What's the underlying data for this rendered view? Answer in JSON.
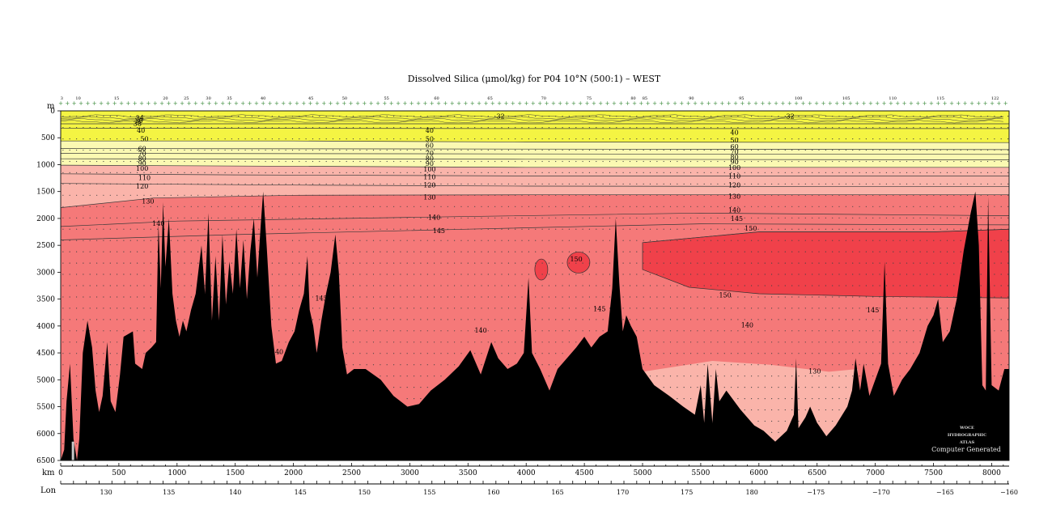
{
  "chart_data": {
    "type": "contour section",
    "title": "Dissolved Silica (μmol/kg) for P04 10°N (500:1) – WEST",
    "y_unit": "m",
    "x_unit": "km",
    "lon_label": "Lon",
    "ylim": [
      6500,
      0
    ],
    "xlim": [
      0,
      8150
    ],
    "depth_ticks": [
      0,
      500,
      1000,
      1500,
      2000,
      2500,
      3000,
      3500,
      4000,
      4500,
      5000,
      5500,
      6000,
      6500
    ],
    "distance_ticks": [
      0,
      500,
      1000,
      1500,
      2000,
      2500,
      3000,
      3500,
      4000,
      4500,
      5000,
      5500,
      6000,
      6500,
      7000,
      7500,
      8000
    ],
    "lon_ticks": [
      {
        "km": 390,
        "label": "130"
      },
      {
        "km": 930,
        "label": "135"
      },
      {
        "km": 1500,
        "label": "140"
      },
      {
        "km": 2060,
        "label": "145"
      },
      {
        "km": 2610,
        "label": "150"
      },
      {
        "km": 3170,
        "label": "155"
      },
      {
        "km": 3720,
        "label": "160"
      },
      {
        "km": 4270,
        "label": "165"
      },
      {
        "km": 4830,
        "label": "170"
      },
      {
        "km": 5380,
        "label": "175"
      },
      {
        "km": 5940,
        "label": "180"
      },
      {
        "km": 6490,
        "label": "−175"
      },
      {
        "km": 7050,
        "label": "−170"
      },
      {
        "km": 7600,
        "label": "−165"
      },
      {
        "km": 8150,
        "label": "−160"
      }
    ],
    "stations": [
      {
        "km": 10,
        "label": "3"
      },
      {
        "km": 150,
        "label": "10"
      },
      {
        "km": 480,
        "label": "15"
      },
      {
        "km": 900,
        "label": "20"
      },
      {
        "km": 1080,
        "label": "25"
      },
      {
        "km": 1270,
        "label": "30"
      },
      {
        "km": 1450,
        "label": "35"
      },
      {
        "km": 1740,
        "label": "40"
      },
      {
        "km": 2150,
        "label": "45"
      },
      {
        "km": 2440,
        "label": "50"
      },
      {
        "km": 2800,
        "label": "55"
      },
      {
        "km": 3230,
        "label": "60"
      },
      {
        "km": 3690,
        "label": "65"
      },
      {
        "km": 4150,
        "label": "70"
      },
      {
        "km": 4540,
        "label": "75"
      },
      {
        "km": 4920,
        "label": "80"
      },
      {
        "km": 5020,
        "label": "85"
      },
      {
        "km": 5420,
        "label": "90"
      },
      {
        "km": 5850,
        "label": "95"
      },
      {
        "km": 6340,
        "label": "100"
      },
      {
        "km": 6750,
        "label": "105"
      },
      {
        "km": 7150,
        "label": "110"
      },
      {
        "km": 7560,
        "label": "115"
      },
      {
        "km": 8030,
        "label": "122"
      }
    ],
    "contour_levels": [
      32,
      34,
      36,
      38,
      40,
      50,
      60,
      70,
      80,
      90,
      100,
      110,
      120,
      130,
      140,
      145,
      150
    ],
    "fill_bands": [
      {
        "range": "<60",
        "color": "#f4f443"
      },
      {
        "range": "60-100",
        "color": "#fbf9b2"
      },
      {
        "range": "100-130",
        "color": "#fab4aa"
      },
      {
        "range": "130-150",
        "color": "#f57979"
      },
      {
        "range": ">150",
        "color": "#f0414a"
      }
    ],
    "contours": [
      {
        "label": "40",
        "depths": [
          [
            0,
            240
          ],
          [
            4000,
            240
          ],
          [
            8150,
            240
          ]
        ]
      },
      {
        "label": "50",
        "depths": [
          [
            0,
            320
          ],
          [
            4000,
            330
          ],
          [
            8150,
            330
          ]
        ]
      },
      {
        "label": "60",
        "depths": [
          [
            0,
            560
          ],
          [
            2000,
            560
          ],
          [
            4000,
            580
          ],
          [
            8150,
            590
          ]
        ]
      },
      {
        "label": "70",
        "depths": [
          [
            0,
            700
          ],
          [
            4000,
            710
          ],
          [
            8150,
            720
          ]
        ]
      },
      {
        "label": "80",
        "depths": [
          [
            0,
            790
          ],
          [
            4000,
            800
          ],
          [
            8150,
            810
          ]
        ]
      },
      {
        "label": "90",
        "depths": [
          [
            0,
            890
          ],
          [
            4000,
            900
          ],
          [
            8150,
            910
          ]
        ]
      },
      {
        "label": "100",
        "depths": [
          [
            0,
            1010
          ],
          [
            4000,
            1050
          ],
          [
            8150,
            1050
          ]
        ]
      },
      {
        "label": "110",
        "depths": [
          [
            0,
            1170
          ],
          [
            1500,
            1190
          ],
          [
            4000,
            1210
          ],
          [
            8150,
            1210
          ]
        ]
      },
      {
        "label": "120",
        "depths": [
          [
            0,
            1350
          ],
          [
            2000,
            1380
          ],
          [
            4000,
            1400
          ],
          [
            8150,
            1410
          ]
        ]
      },
      {
        "label": "130",
        "depths": [
          [
            0,
            1800
          ],
          [
            800,
            1620
          ],
          [
            2000,
            1570
          ],
          [
            4000,
            1560
          ],
          [
            8150,
            1560
          ]
        ]
      },
      {
        "label": "140",
        "depths": [
          [
            0,
            2150
          ],
          [
            1000,
            2050
          ],
          [
            3000,
            1980
          ],
          [
            5500,
            1900
          ],
          [
            8150,
            1950
          ]
        ]
      },
      {
        "label": "145",
        "depths": [
          [
            0,
            2400
          ],
          [
            1500,
            2300
          ],
          [
            3500,
            2200
          ],
          [
            5500,
            2100
          ],
          [
            8150,
            2120
          ]
        ]
      },
      {
        "label": "150",
        "depths": [
          [
            5000,
            2450
          ],
          [
            6000,
            2250
          ],
          [
            7500,
            2250
          ],
          [
            8150,
            2200
          ]
        ]
      }
    ],
    "labels": [
      {
        "text": "34",
        "km": 680,
        "depth": 130
      },
      {
        "text": "36",
        "km": 670,
        "depth": 180
      },
      {
        "text": "38",
        "km": 660,
        "depth": 230
      },
      {
        "text": "40",
        "km": 690,
        "depth": 360
      },
      {
        "text": "50",
        "km": 720,
        "depth": 520
      },
      {
        "text": "60",
        "km": 700,
        "depth": 700
      },
      {
        "text": "70",
        "km": 700,
        "depth": 790
      },
      {
        "text": "80",
        "km": 700,
        "depth": 880
      },
      {
        "text": "90",
        "km": 700,
        "depth": 970
      },
      {
        "text": "100",
        "km": 700,
        "depth": 1070
      },
      {
        "text": "110",
        "km": 720,
        "depth": 1240
      },
      {
        "text": "120",
        "km": 700,
        "depth": 1400
      },
      {
        "text": "130",
        "km": 750,
        "depth": 1680
      },
      {
        "text": "140",
        "km": 840,
        "depth": 2090
      },
      {
        "text": "40",
        "km": 3170,
        "depth": 360
      },
      {
        "text": "50",
        "km": 3170,
        "depth": 520
      },
      {
        "text": "60",
        "km": 3170,
        "depth": 640
      },
      {
        "text": "70",
        "km": 3170,
        "depth": 780
      },
      {
        "text": "80",
        "km": 3170,
        "depth": 880
      },
      {
        "text": "90",
        "km": 3170,
        "depth": 980
      },
      {
        "text": "100",
        "km": 3170,
        "depth": 1080
      },
      {
        "text": "110",
        "km": 3170,
        "depth": 1230
      },
      {
        "text": "120",
        "km": 3170,
        "depth": 1380
      },
      {
        "text": "130",
        "km": 3170,
        "depth": 1600
      },
      {
        "text": "140",
        "km": 3210,
        "depth": 1980
      },
      {
        "text": "145",
        "km": 3250,
        "depth": 2230
      },
      {
        "text": "32",
        "km": 3780,
        "depth": 100
      },
      {
        "text": "150",
        "km": 4430,
        "depth": 2750
      },
      {
        "text": "145",
        "km": 4630,
        "depth": 3680
      },
      {
        "text": "140",
        "km": 3610,
        "depth": 4080
      },
      {
        "text": "145",
        "km": 2240,
        "depth": 3480
      },
      {
        "text": "140",
        "km": 1860,
        "depth": 4480
      },
      {
        "text": "40",
        "km": 5790,
        "depth": 400
      },
      {
        "text": "50",
        "km": 5790,
        "depth": 540
      },
      {
        "text": "60",
        "km": 5790,
        "depth": 660
      },
      {
        "text": "70",
        "km": 5790,
        "depth": 760
      },
      {
        "text": "80",
        "km": 5790,
        "depth": 860
      },
      {
        "text": "90",
        "km": 5790,
        "depth": 950
      },
      {
        "text": "100",
        "km": 5790,
        "depth": 1050
      },
      {
        "text": "110",
        "km": 5790,
        "depth": 1210
      },
      {
        "text": "120",
        "km": 5790,
        "depth": 1380
      },
      {
        "text": "130",
        "km": 5790,
        "depth": 1590
      },
      {
        "text": "140",
        "km": 5790,
        "depth": 1840
      },
      {
        "text": "145",
        "km": 5810,
        "depth": 2000
      },
      {
        "text": "150",
        "km": 5930,
        "depth": 2180
      },
      {
        "text": "150",
        "km": 5710,
        "depth": 3420
      },
      {
        "text": "140",
        "km": 5900,
        "depth": 3980
      },
      {
        "text": "130",
        "km": 6480,
        "depth": 4840
      },
      {
        "text": "145",
        "km": 6980,
        "depth": 3700
      },
      {
        "text": "32",
        "km": 6270,
        "depth": 100
      }
    ],
    "bathymetry": [
      [
        0,
        6500
      ],
      [
        30,
        6300
      ],
      [
        50,
        5400
      ],
      [
        80,
        4700
      ],
      [
        110,
        6100
      ],
      [
        140,
        6500
      ],
      [
        160,
        6100
      ],
      [
        190,
        4500
      ],
      [
        230,
        3900
      ],
      [
        270,
        4400
      ],
      [
        300,
        5200
      ],
      [
        330,
        5600
      ],
      [
        360,
        5300
      ],
      [
        400,
        4300
      ],
      [
        430,
        5400
      ],
      [
        470,
        5600
      ],
      [
        510,
        4900
      ],
      [
        540,
        4200
      ],
      [
        620,
        4100
      ],
      [
        640,
        4700
      ],
      [
        700,
        4800
      ],
      [
        730,
        4500
      ],
      [
        780,
        4400
      ],
      [
        820,
        4300
      ],
      [
        840,
        2100
      ],
      [
        860,
        3300
      ],
      [
        880,
        1700
      ],
      [
        900,
        2900
      ],
      [
        930,
        2000
      ],
      [
        960,
        3400
      ],
      [
        990,
        3900
      ],
      [
        1020,
        4200
      ],
      [
        1050,
        3900
      ],
      [
        1080,
        4100
      ],
      [
        1120,
        3700
      ],
      [
        1160,
        3400
      ],
      [
        1210,
        2500
      ],
      [
        1240,
        3400
      ],
      [
        1270,
        1900
      ],
      [
        1300,
        3900
      ],
      [
        1330,
        2700
      ],
      [
        1360,
        3900
      ],
      [
        1390,
        2300
      ],
      [
        1420,
        3600
      ],
      [
        1450,
        2800
      ],
      [
        1480,
        3400
      ],
      [
        1510,
        2200
      ],
      [
        1540,
        3300
      ],
      [
        1570,
        2400
      ],
      [
        1600,
        3500
      ],
      [
        1630,
        2600
      ],
      [
        1660,
        2000
      ],
      [
        1690,
        3100
      ],
      [
        1720,
        2100
      ],
      [
        1740,
        1500
      ],
      [
        1770,
        2500
      ],
      [
        1810,
        4000
      ],
      [
        1850,
        4700
      ],
      [
        1900,
        4650
      ],
      [
        1960,
        4300
      ],
      [
        2010,
        4100
      ],
      [
        2050,
        3700
      ],
      [
        2090,
        3400
      ],
      [
        2120,
        2700
      ],
      [
        2140,
        3700
      ],
      [
        2170,
        4000
      ],
      [
        2200,
        4500
      ],
      [
        2240,
        3900
      ],
      [
        2280,
        3400
      ],
      [
        2320,
        3000
      ],
      [
        2360,
        2300
      ],
      [
        2390,
        3000
      ],
      [
        2420,
        4400
      ],
      [
        2460,
        4900
      ],
      [
        2520,
        4800
      ],
      [
        2620,
        4800
      ],
      [
        2750,
        5000
      ],
      [
        2860,
        5300
      ],
      [
        2980,
        5500
      ],
      [
        3080,
        5450
      ],
      [
        3180,
        5200
      ],
      [
        3300,
        5000
      ],
      [
        3420,
        4750
      ],
      [
        3520,
        4450
      ],
      [
        3610,
        4900
      ],
      [
        3700,
        4300
      ],
      [
        3760,
        4600
      ],
      [
        3840,
        4800
      ],
      [
        3920,
        4700
      ],
      [
        3980,
        4500
      ],
      [
        4020,
        3100
      ],
      [
        4050,
        4500
      ],
      [
        4120,
        4800
      ],
      [
        4200,
        5200
      ],
      [
        4270,
        4800
      ],
      [
        4350,
        4600
      ],
      [
        4430,
        4400
      ],
      [
        4500,
        4200
      ],
      [
        4560,
        4400
      ],
      [
        4630,
        4200
      ],
      [
        4700,
        4100
      ],
      [
        4740,
        3300
      ],
      [
        4770,
        2000
      ],
      [
        4800,
        3200
      ],
      [
        4830,
        4100
      ],
      [
        4860,
        3800
      ],
      [
        4900,
        4000
      ],
      [
        4950,
        4200
      ],
      [
        5000,
        4800
      ],
      [
        5100,
        5100
      ],
      [
        5230,
        5300
      ],
      [
        5350,
        5500
      ],
      [
        5450,
        5650
      ],
      [
        5500,
        5100
      ],
      [
        5530,
        5800
      ],
      [
        5560,
        4700
      ],
      [
        5600,
        5800
      ],
      [
        5630,
        4800
      ],
      [
        5660,
        5400
      ],
      [
        5720,
        5200
      ],
      [
        5840,
        5550
      ],
      [
        5960,
        5850
      ],
      [
        6040,
        5950
      ],
      [
        6140,
        6150
      ],
      [
        6240,
        5950
      ],
      [
        6300,
        5650
      ],
      [
        6320,
        4600
      ],
      [
        6340,
        5900
      ],
      [
        6400,
        5700
      ],
      [
        6440,
        5500
      ],
      [
        6500,
        5800
      ],
      [
        6580,
        6050
      ],
      [
        6660,
        5850
      ],
      [
        6760,
        5500
      ],
      [
        6800,
        5200
      ],
      [
        6830,
        4600
      ],
      [
        6870,
        5200
      ],
      [
        6900,
        4700
      ],
      [
        6950,
        5300
      ],
      [
        7000,
        5000
      ],
      [
        7050,
        4700
      ],
      [
        7080,
        2800
      ],
      [
        7110,
        4700
      ],
      [
        7160,
        5300
      ],
      [
        7230,
        5000
      ],
      [
        7300,
        4800
      ],
      [
        7380,
        4500
      ],
      [
        7450,
        4000
      ],
      [
        7500,
        3800
      ],
      [
        7540,
        3500
      ],
      [
        7580,
        4300
      ],
      [
        7640,
        4100
      ],
      [
        7700,
        3500
      ],
      [
        7760,
        2600
      ],
      [
        7820,
        1900
      ],
      [
        7860,
        1500
      ],
      [
        7890,
        2500
      ],
      [
        7920,
        5100
      ],
      [
        7950,
        5200
      ],
      [
        7970,
        1600
      ],
      [
        8000,
        5100
      ],
      [
        8060,
        5200
      ],
      [
        8110,
        4800
      ],
      [
        8150,
        4800
      ],
      [
        8150,
        6500
      ]
    ],
    "watermark": [
      "WOCE",
      "HYDROGRAPHIC",
      "ATLAS",
      "Computer Generated"
    ]
  }
}
